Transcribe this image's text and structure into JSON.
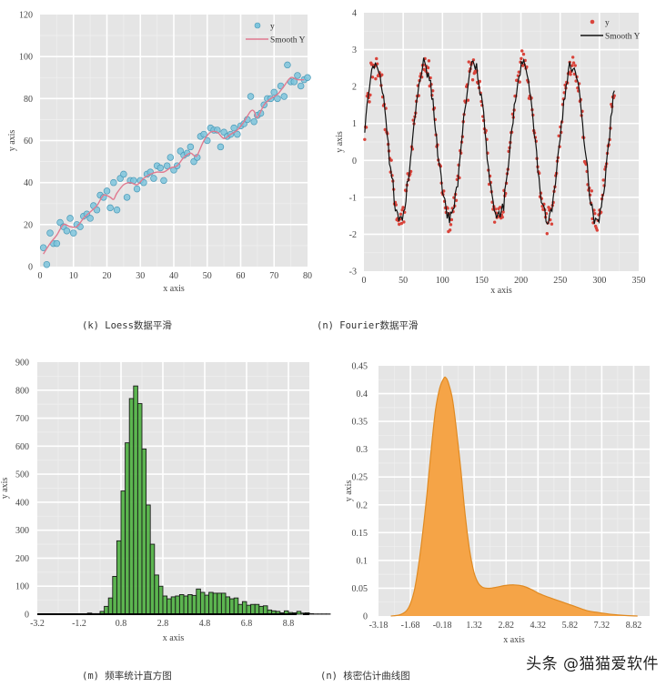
{
  "captions": {
    "k": "(k) Loess数据平滑",
    "n_fourier": "(n) Fourier数据平滑",
    "m": "(m) 频率统计直方图",
    "n_kde": "(n) 核密估计曲线图"
  },
  "watermark": "头条 @猫猫爱软件",
  "colors": {
    "plot_bg": "#e5e5e5",
    "grid": "#ffffff",
    "loess_points": "#7ec4dc",
    "loess_points_edge": "#4a9ab8",
    "loess_line": "#e07a90",
    "fourier_points": "#d9433a",
    "fourier_line": "#111111",
    "hist_fill": "#4caf3f",
    "hist_edge": "#1a1a1a",
    "kde_fill": "#f5a447",
    "kde_edge": "#e08a22"
  },
  "chart_data": [
    {
      "id": "loess",
      "type": "scatter",
      "title": "(k) Loess数据平滑",
      "xlabel": "x axis",
      "ylabel": "y axis",
      "xlim": [
        0,
        80
      ],
      "ylim": [
        0,
        120
      ],
      "xticks": [
        "0",
        "10",
        "20",
        "30",
        "40",
        "50",
        "60",
        "70",
        "80"
      ],
      "yticks": [
        "0",
        "20",
        "40",
        "60",
        "80",
        "100",
        "120"
      ],
      "grid": true,
      "legend": {
        "position": "top-right",
        "entries": [
          "y",
          "Smooth Y"
        ]
      },
      "series": [
        {
          "name": "y",
          "kind": "points",
          "x": [
            1,
            2,
            3,
            4,
            5,
            6,
            7,
            8,
            9,
            10,
            11,
            12,
            13,
            14,
            15,
            16,
            17,
            18,
            19,
            20,
            21,
            22,
            23,
            24,
            25,
            26,
            27,
            28,
            29,
            30,
            31,
            32,
            33,
            34,
            35,
            36,
            37,
            38,
            39,
            40,
            41,
            42,
            43,
            44,
            45,
            46,
            47,
            48,
            49,
            50,
            51,
            52,
            53,
            54,
            55,
            56,
            57,
            58,
            59,
            60,
            61,
            62,
            63,
            64,
            65,
            66,
            67,
            68,
            69,
            70,
            71,
            72,
            73,
            74,
            75,
            76,
            77,
            78,
            79,
            80
          ],
          "y": [
            9,
            1,
            16,
            11,
            11,
            21,
            19,
            17,
            23,
            16,
            20,
            19,
            24,
            25,
            23,
            29,
            27,
            34,
            33,
            36,
            28,
            40,
            27,
            42,
            44,
            33,
            41,
            41,
            37,
            41,
            40,
            44,
            45,
            42,
            48,
            47,
            41,
            48,
            52,
            46,
            48,
            55,
            53,
            54,
            57,
            50,
            52,
            62,
            63,
            60,
            66,
            65,
            65,
            57,
            64,
            62,
            63,
            66,
            63,
            67,
            68,
            70,
            81,
            69,
            72,
            73,
            77,
            80,
            80,
            83,
            80,
            86,
            81,
            96,
            88,
            88,
            91,
            86,
            89,
            90
          ]
        },
        {
          "name": "Smooth Y",
          "kind": "line",
          "x": [
            1,
            3,
            5,
            7,
            9,
            11,
            13,
            15,
            17,
            19,
            21,
            22,
            23,
            25,
            27,
            29,
            31,
            33,
            35,
            37,
            39,
            41,
            43,
            45,
            46,
            47,
            49,
            51,
            53,
            55,
            57,
            59,
            61,
            63,
            64,
            65,
            67,
            69,
            71,
            73,
            75,
            77,
            79
          ],
          "y": [
            6,
            11,
            15,
            20,
            19,
            19,
            23,
            26,
            29,
            34,
            33,
            32,
            35,
            39,
            40,
            39,
            42,
            44,
            45,
            45,
            47,
            48,
            52,
            54,
            53,
            53,
            60,
            64,
            64,
            61,
            63,
            65,
            69,
            74,
            74,
            71,
            77,
            80,
            82,
            86,
            90,
            89,
            89
          ]
        }
      ]
    },
    {
      "id": "fourier",
      "type": "scatter",
      "title": "(n) Fourier数据平滑",
      "xlabel": "x axis",
      "ylabel": "y axis",
      "xlim": [
        0,
        350
      ],
      "ylim": [
        -3,
        4
      ],
      "xticks": [
        "0",
        "50",
        "100",
        "150",
        "200",
        "250",
        "300",
        "350"
      ],
      "yticks": [
        "-3",
        "-2",
        "-1",
        "0",
        "1",
        "2",
        "3",
        "4"
      ],
      "grid": true,
      "legend": {
        "position": "top-right",
        "entries": [
          "y",
          "Smooth Y"
        ]
      },
      "model": {
        "offset": 0.5,
        "amplitude": 2.1,
        "period": 62.5,
        "phase_x_at_peak": 15,
        "x_range": [
          0,
          320
        ],
        "n_points": 320
      },
      "series": [
        {
          "name": "y",
          "kind": "points",
          "description": "noisy sinusoid, ~320 points, peaks ≈2.6–3.0, troughs ≈-1.4 to -1.9"
        },
        {
          "name": "Smooth Y",
          "kind": "line",
          "description": "Fourier smoothed curve following the sinusoid, ends ≈0.6 at x=320"
        }
      ],
      "peaks_x": [
        15,
        80,
        142,
        205,
        267
      ],
      "troughs_x": [
        46,
        110,
        173,
        235,
        300
      ]
    },
    {
      "id": "histogram",
      "type": "bar",
      "title": "(m) 频率统计直方图",
      "xlabel": "x axis",
      "ylabel": "y axis",
      "xlim": [
        -3.2,
        9.8
      ],
      "ylim": [
        0,
        900
      ],
      "xticks": [
        "-3.2",
        "-1.2",
        "0.8",
        "2.8",
        "4.8",
        "6.8",
        "8.8"
      ],
      "yticks": [
        "0",
        "100",
        "200",
        "300",
        "400",
        "500",
        "600",
        "700",
        "800",
        "900"
      ],
      "grid": true,
      "bin_start": -3.2,
      "bin_width": 0.2,
      "values": [
        0,
        0,
        0,
        0,
        0,
        0,
        0,
        0,
        0,
        0,
        0,
        0,
        4,
        2,
        2,
        10,
        28,
        58,
        135,
        262,
        440,
        612,
        770,
        815,
        752,
        590,
        390,
        250,
        140,
        100,
        65,
        55,
        62,
        65,
        70,
        65,
        70,
        67,
        90,
        78,
        68,
        78,
        75,
        75,
        75,
        62,
        55,
        58,
        35,
        45,
        32,
        35,
        35,
        28,
        30,
        15,
        12,
        10,
        5,
        12,
        6,
        5,
        10,
        4,
        5,
        2,
        1,
        1,
        1,
        1,
        0,
        0,
        0,
        0,
        0
      ]
    },
    {
      "id": "kde",
      "type": "area",
      "title": "(n) 核密估计曲线图",
      "xlabel": "x axis",
      "ylabel": "y axis",
      "xlim": [
        -3.18,
        9.57
      ],
      "ylim": [
        0,
        0.45
      ],
      "xticks": [
        "-3.18",
        "-1.68",
        "-0.18",
        "1.32",
        "2.82",
        "4.32",
        "5.82",
        "7.32",
        "8.82"
      ],
      "yticks": [
        "0",
        "0.05",
        "0.1",
        "0.15",
        "0.2",
        "0.25",
        "0.3",
        "0.35",
        "0.4",
        "0.45"
      ],
      "grid": true,
      "x": [
        -2.6,
        -2.2,
        -1.9,
        -1.7,
        -1.5,
        -1.3,
        -1.1,
        -0.9,
        -0.7,
        -0.5,
        -0.3,
        -0.1,
        0.0,
        0.1,
        0.3,
        0.5,
        0.7,
        0.9,
        1.1,
        1.3,
        1.5,
        1.7,
        1.9,
        2.1,
        2.4,
        2.8,
        3.2,
        3.6,
        4.0,
        4.4,
        4.8,
        5.4,
        6.0,
        6.6,
        7.2,
        7.8,
        8.4,
        9.0
      ],
      "y": [
        0.0,
        0.002,
        0.008,
        0.02,
        0.045,
        0.09,
        0.15,
        0.22,
        0.3,
        0.37,
        0.41,
        0.428,
        0.428,
        0.42,
        0.39,
        0.33,
        0.26,
        0.18,
        0.12,
        0.08,
        0.06,
        0.052,
        0.05,
        0.05,
        0.052,
        0.055,
        0.056,
        0.054,
        0.048,
        0.04,
        0.034,
        0.026,
        0.018,
        0.01,
        0.006,
        0.003,
        0.001,
        0.0
      ]
    }
  ]
}
